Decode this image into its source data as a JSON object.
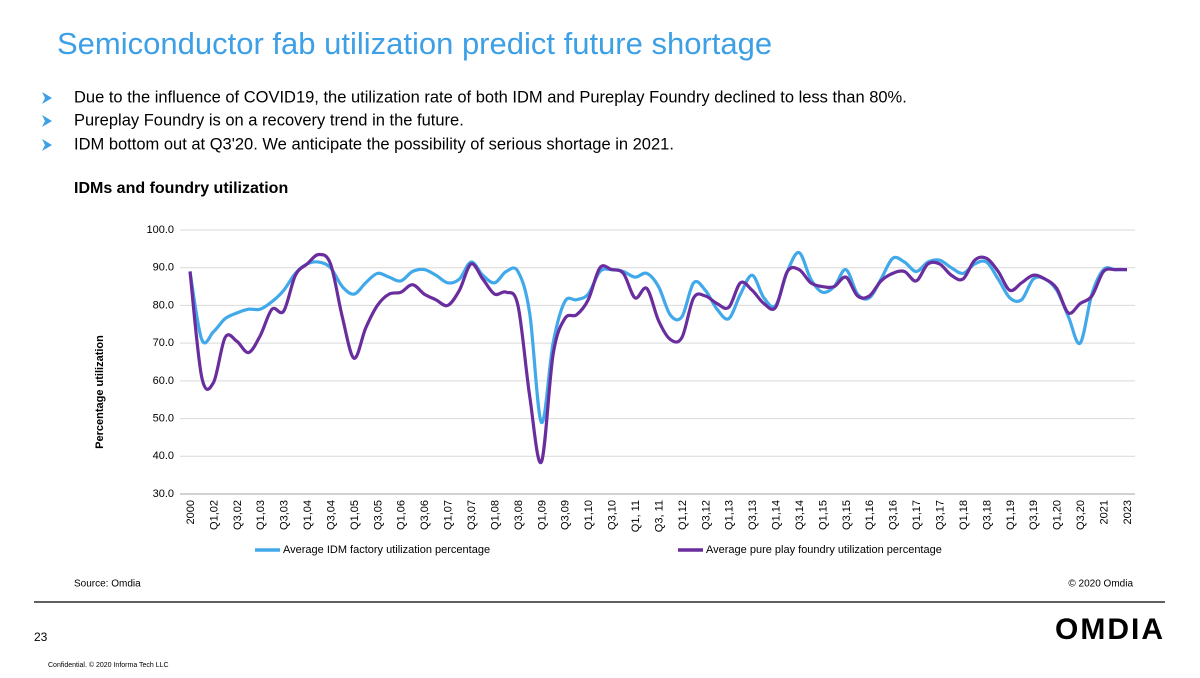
{
  "slide": {
    "title": "Semiconductor fab utilization predict future shortage",
    "bullets": [
      "Due to the influence of COVID19, the utilization rate of both IDM and Pureplay Foundry declined to less than 80%.",
      "Pureplay Foundry is on a recovery trend in the future.",
      "IDM bottom out at Q3'20. We anticipate the possibility of serious shortage in 2021."
    ],
    "page_number": "23",
    "logo": "OMDIA",
    "footer": "Confidential. © 2020 Informa Tech LLC"
  },
  "chart_data": {
    "type": "line",
    "title": "IDMs and foundry utilization",
    "y_label": "Percentage utilization",
    "source": "Source: Omdia",
    "copyright": "© 2020 Omdia",
    "categories": [
      "2000",
      null,
      "Q1,02",
      null,
      "Q3,02",
      null,
      "Q1,03",
      null,
      "Q3,03",
      null,
      "Q1,04",
      null,
      "Q3,04",
      null,
      "Q1,05",
      null,
      "Q3,05",
      null,
      "Q1,06",
      null,
      "Q3,06",
      null,
      "Q1,07",
      null,
      "Q3,07",
      null,
      "Q1,08",
      null,
      "Q3,08",
      null,
      "Q1,09",
      null,
      "Q3,09",
      null,
      "Q1,10",
      null,
      "Q3,10",
      null,
      "Q1, 11",
      null,
      "Q3, 11",
      null,
      "Q1,12",
      null,
      "Q3,12",
      null,
      "Q1,13",
      null,
      "Q3,13",
      null,
      "Q1,14",
      null,
      "Q3,14",
      null,
      "Q1,15",
      null,
      "Q3,15",
      null,
      "Q1,16",
      null,
      "Q3,16",
      null,
      "Q1,17",
      null,
      "Q3,17",
      null,
      "Q1,18",
      null,
      "Q3,18",
      null,
      "Q1,19",
      null,
      "Q3,19",
      null,
      "Q1,20",
      null,
      "Q3,20",
      null,
      "2021",
      null,
      "2023"
    ],
    "series": [
      {
        "name": "Average IDM factory utilization percentage",
        "color": "#41a9ea",
        "values": [
          89,
          71,
          73,
          76.5,
          78,
          79,
          79,
          81,
          84,
          88.5,
          91,
          91.5,
          90,
          85,
          83,
          86,
          88.5,
          87.5,
          86.5,
          89,
          89.5,
          88,
          86,
          87,
          91.5,
          88,
          86,
          89,
          89,
          78,
          49,
          70,
          81,
          81.5,
          83,
          89,
          89.5,
          89,
          87.5,
          88.5,
          85,
          77.5,
          77,
          86,
          84,
          79,
          76.5,
          83,
          88,
          82,
          80,
          89,
          94,
          87,
          83.5,
          85,
          89.5,
          83,
          82,
          87,
          92.5,
          91.5,
          89,
          91.5,
          92,
          90,
          88.5,
          91,
          91.5,
          87,
          82,
          81.5,
          87,
          87,
          84,
          77,
          70,
          83,
          89.5,
          89.5,
          89.5
        ]
      },
      {
        "name": "Average pure play foundry utilization percentage",
        "color": "#6a2d9e",
        "values": [
          89,
          61,
          59.5,
          71.5,
          70.5,
          67.5,
          72,
          79,
          78.5,
          88,
          91,
          93.5,
          91,
          77,
          66,
          74,
          80,
          83,
          83.5,
          85.5,
          83,
          81.5,
          80,
          84,
          91,
          87,
          83,
          83.5,
          80,
          56,
          38.5,
          67,
          76.5,
          77.5,
          81.5,
          90,
          89.5,
          88.5,
          82,
          84.5,
          76,
          71,
          71.5,
          82,
          82.5,
          80.5,
          79.5,
          86,
          84,
          80.5,
          79.5,
          89,
          89.5,
          86,
          85,
          85,
          87.5,
          82.5,
          82.5,
          86.5,
          88.5,
          89,
          86.5,
          91,
          91,
          88,
          87,
          92,
          92.5,
          89,
          84,
          86,
          88,
          87,
          84.5,
          78,
          80.5,
          82.5,
          89,
          89.5,
          89.5
        ]
      }
    ],
    "ylim": [
      30,
      100
    ],
    "yticks": [
      {
        "value": 30,
        "label": "30.0"
      },
      {
        "value": 40,
        "label": "40.0"
      },
      {
        "value": 50,
        "label": "50.0"
      },
      {
        "value": 60,
        "label": "60.0"
      },
      {
        "value": 70,
        "label": "70.0"
      },
      {
        "value": 80,
        "label": "80.0"
      },
      {
        "value": 90,
        "label": "90.0"
      },
      {
        "value": 100,
        "label": "100.0"
      }
    ],
    "grid": true,
    "legend": "bottom"
  }
}
